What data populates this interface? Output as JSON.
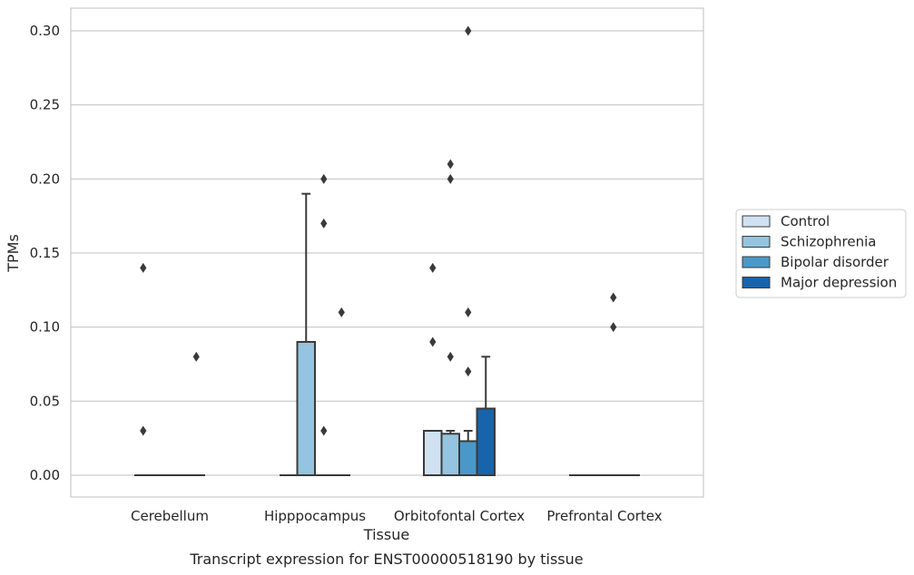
{
  "chart_data": {
    "type": "box",
    "title": "",
    "caption": "Transcript expression for ENST00000518190 by tissue",
    "xlabel": "Tissue",
    "ylabel": "TPMs",
    "ylim": [
      -0.015,
      0.315
    ],
    "yticks": [
      0.0,
      0.05,
      0.1,
      0.15,
      0.2,
      0.25,
      0.3
    ],
    "ytick_labels": [
      "0.00",
      "0.05",
      "0.10",
      "0.15",
      "0.20",
      "0.25",
      "0.30"
    ],
    "grid": "horizontal",
    "legend_position": "right",
    "categories": [
      "Cerebellum",
      "Hipppocampus",
      "Orbitofontal Cortex",
      "Prefrontal Cortex"
    ],
    "series": [
      {
        "name": "Control",
        "color": "#d0e1f2",
        "boxes": [
          {
            "q1": 0,
            "median": 0,
            "q3": 0,
            "whislo": 0,
            "whishi": 0,
            "fliers": [
              0.14,
              0.03
            ]
          },
          {
            "q1": 0,
            "median": 0,
            "q3": 0,
            "whislo": 0,
            "whishi": 0,
            "fliers": []
          },
          {
            "q1": 0,
            "median": 0,
            "q3": 0.03,
            "whislo": 0,
            "whishi": 0.03,
            "fliers": [
              0.14,
              0.09
            ]
          },
          {
            "q1": 0,
            "median": 0,
            "q3": 0,
            "whislo": 0,
            "whishi": 0,
            "fliers": []
          }
        ]
      },
      {
        "name": "Schizophrenia",
        "color": "#94c4df",
        "boxes": [
          {
            "q1": 0,
            "median": 0,
            "q3": 0,
            "whislo": 0,
            "whishi": 0,
            "fliers": []
          },
          {
            "q1": 0,
            "median": 0,
            "q3": 0.09,
            "whislo": 0,
            "whishi": 0.19,
            "fliers": []
          },
          {
            "q1": 0,
            "median": 0,
            "q3": 0.028,
            "whislo": 0,
            "whishi": 0.03,
            "fliers": [
              0.21,
              0.2,
              0.08
            ]
          },
          {
            "q1": 0,
            "median": 0,
            "q3": 0,
            "whislo": 0,
            "whishi": 0,
            "fliers": []
          }
        ]
      },
      {
        "name": "Bipolar disorder",
        "color": "#4a98c9",
        "boxes": [
          {
            "q1": 0,
            "median": 0,
            "q3": 0,
            "whislo": 0,
            "whishi": 0,
            "fliers": []
          },
          {
            "q1": 0,
            "median": 0,
            "q3": 0,
            "whislo": 0,
            "whishi": 0,
            "fliers": [
              0.2,
              0.17,
              0.03
            ]
          },
          {
            "q1": 0,
            "median": 0,
            "q3": 0.023,
            "whislo": 0,
            "whishi": 0.03,
            "fliers": [
              0.3,
              0.11,
              0.07
            ]
          },
          {
            "q1": 0,
            "median": 0,
            "q3": 0,
            "whislo": 0,
            "whishi": 0,
            "fliers": [
              0.12,
              0.1
            ]
          }
        ]
      },
      {
        "name": "Major depression",
        "color": "#1764ab",
        "boxes": [
          {
            "q1": 0,
            "median": 0,
            "q3": 0,
            "whislo": 0,
            "whishi": 0,
            "fliers": [
              0.08
            ]
          },
          {
            "q1": 0,
            "median": 0,
            "q3": 0,
            "whislo": 0,
            "whishi": 0,
            "fliers": [
              0.11
            ]
          },
          {
            "q1": 0,
            "median": 0,
            "q3": 0.045,
            "whislo": 0,
            "whishi": 0.08,
            "fliers": []
          },
          {
            "q1": 0,
            "median": 0,
            "q3": 0,
            "whislo": 0,
            "whishi": 0,
            "fliers": []
          }
        ]
      }
    ]
  }
}
